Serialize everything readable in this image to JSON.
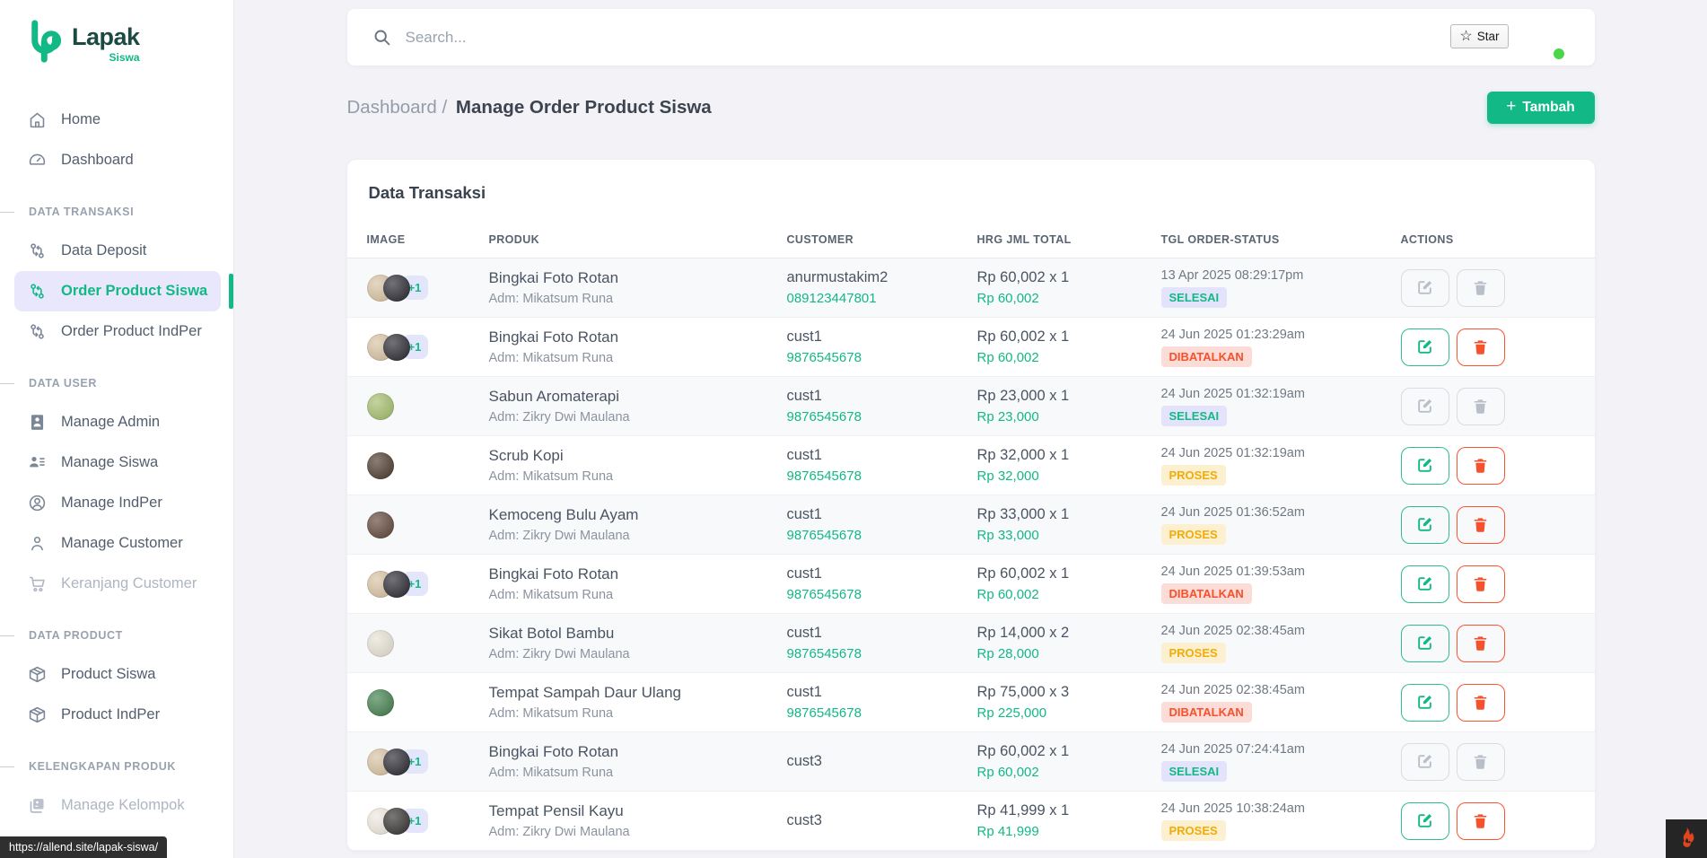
{
  "app": {
    "logo_text": "Lapak",
    "logo_sub": "Siswa",
    "url_tooltip": "https://allend.site/lapak-siswa/"
  },
  "colors": {
    "primary_green": "#12b886",
    "danger_red": "#f4512c",
    "warning_yellow": "#f0ac08",
    "active_lavender": "#e8e7fc",
    "page_background": "#f2f2f7",
    "notification_dot": "#4ad54a",
    "flame_orange": "#e0451d"
  },
  "topbar": {
    "search_placeholder": "Search...",
    "star_label": "Star",
    "star_icon": "☆"
  },
  "breadcrumb": {
    "parent": "Dashboard",
    "separator": "/",
    "current": "Manage Order Product Siswa"
  },
  "toolbar": {
    "add_plus": "+",
    "add_label": "Tambah"
  },
  "sidebar": {
    "sections": [
      {
        "label": "",
        "items": [
          {
            "label": "Home",
            "icon": "home"
          },
          {
            "label": "Dashboard",
            "icon": "dashboard"
          }
        ]
      },
      {
        "label": "DATA TRANSAKSI",
        "items": [
          {
            "label": "Data Deposit",
            "icon": "transaction"
          },
          {
            "label": "Order Product Siswa",
            "icon": "transaction",
            "active": true
          },
          {
            "label": "Order Product IndPer",
            "icon": "transaction"
          }
        ]
      },
      {
        "label": "DATA USER",
        "items": [
          {
            "label": "Manage Admin",
            "icon": "idcard"
          },
          {
            "label": "Manage Siswa",
            "icon": "users"
          },
          {
            "label": "Manage IndPer",
            "icon": "usercircle"
          },
          {
            "label": "Manage Customer",
            "icon": "user"
          },
          {
            "label": "Keranjang Customer",
            "icon": "cart",
            "muted": true
          }
        ]
      },
      {
        "label": "DATA PRODUCT",
        "items": [
          {
            "label": "Product Siswa",
            "icon": "box"
          },
          {
            "label": "Product IndPer",
            "icon": "box"
          }
        ]
      },
      {
        "label": "KELENGKAPAN PRODUK",
        "items": [
          {
            "label": "Manage Kelompok",
            "icon": "images",
            "muted": true
          }
        ]
      }
    ]
  },
  "table": {
    "title": "Data Transaksi",
    "columns": [
      "IMAGE",
      "PRODUK",
      "CUSTOMER",
      "HRG JML TOTAL",
      "TGL ORDER-STATUS",
      "ACTIONS"
    ],
    "rows": [
      {
        "product": "Bingkai Foto Rotan",
        "admin": "Adm: Mikatsum Runa",
        "customer": "anurmustakim2",
        "phone": "089123447801",
        "qty_price": "Rp 60,002 x 1",
        "total": "Rp 60,002",
        "date": "13 Apr 2025 08:29:17pm",
        "status": "SELESAI",
        "status_type": "selesai",
        "disabled": true,
        "thumbs": [
          "#d8c2a2",
          "#26262e"
        ],
        "extra": "+1"
      },
      {
        "product": "Bingkai Foto Rotan",
        "admin": "Adm: Mikatsum Runa",
        "customer": "cust1",
        "phone": "9876545678",
        "qty_price": "Rp 60,002 x 1",
        "total": "Rp 60,002",
        "date": "24 Jun 2025 01:23:29am",
        "status": "DIBATALKAN",
        "status_type": "dibatalkan",
        "disabled": false,
        "thumbs": [
          "#d8c2a2",
          "#26262e"
        ],
        "extra": "+1"
      },
      {
        "product": "Sabun Aromaterapi",
        "admin": "Adm: Zikry Dwi Maulana",
        "customer": "cust1",
        "phone": "9876545678",
        "qty_price": "Rp 23,000 x 1",
        "total": "Rp 23,000",
        "date": "24 Jun 2025 01:32:19am",
        "status": "SELESAI",
        "status_type": "selesai",
        "disabled": true,
        "thumbs": [
          "#a3bd6b"
        ],
        "extra": ""
      },
      {
        "product": "Scrub Kopi",
        "admin": "Adm: Mikatsum Runa",
        "customer": "cust1",
        "phone": "9876545678",
        "qty_price": "Rp 32,000 x 1",
        "total": "Rp 32,000",
        "date": "24 Jun 2025 01:32:19am",
        "status": "PROSES",
        "status_type": "proses",
        "disabled": false,
        "thumbs": [
          "#4b382a"
        ],
        "extra": ""
      },
      {
        "product": "Kemoceng Bulu Ayam",
        "admin": "Adm: Zikry Dwi Maulana",
        "customer": "cust1",
        "phone": "9876545678",
        "qty_price": "Rp 33,000 x 1",
        "total": "Rp 33,000",
        "date": "24 Jun 2025 01:36:52am",
        "status": "PROSES",
        "status_type": "proses",
        "disabled": false,
        "thumbs": [
          "#5f4436"
        ],
        "extra": ""
      },
      {
        "product": "Bingkai Foto Rotan",
        "admin": "Adm: Mikatsum Runa",
        "customer": "cust1",
        "phone": "9876545678",
        "qty_price": "Rp 60,002 x 1",
        "total": "Rp 60,002",
        "date": "24 Jun 2025 01:39:53am",
        "status": "DIBATALKAN",
        "status_type": "dibatalkan",
        "disabled": false,
        "thumbs": [
          "#d8c2a2",
          "#26262e"
        ],
        "extra": "+1"
      },
      {
        "product": "Sikat Botol Bambu",
        "admin": "Adm: Zikry Dwi Maulana",
        "customer": "cust1",
        "phone": "9876545678",
        "qty_price": "Rp 14,000 x 2",
        "total": "Rp 28,000",
        "date": "24 Jun 2025 02:38:45am",
        "status": "PROSES",
        "status_type": "proses",
        "disabled": false,
        "thumbs": [
          "#e8e2d4"
        ],
        "extra": ""
      },
      {
        "product": "Tempat Sampah Daur Ulang",
        "admin": "Adm: Mikatsum Runa",
        "customer": "cust1",
        "phone": "9876545678",
        "qty_price": "Rp 75,000 x 3",
        "total": "Rp 225,000",
        "date": "24 Jun 2025 02:38:45am",
        "status": "DIBATALKAN",
        "status_type": "dibatalkan",
        "disabled": false,
        "thumbs": [
          "#3f7d4a"
        ],
        "extra": ""
      },
      {
        "product": "Bingkai Foto Rotan",
        "admin": "Adm: Mikatsum Runa",
        "customer": "cust3",
        "phone": "",
        "qty_price": "Rp 60,002 x 1",
        "total": "Rp 60,002",
        "date": "24 Jun 2025 07:24:41am",
        "status": "SELESAI",
        "status_type": "selesai",
        "disabled": true,
        "thumbs": [
          "#d8c2a2",
          "#26262e"
        ],
        "extra": "+1"
      },
      {
        "product": "Tempat Pensil Kayu",
        "admin": "Adm: Zikry Dwi Maulana",
        "customer": "cust3",
        "phone": "",
        "qty_price": "Rp 41,999 x 1",
        "total": "Rp 41,999",
        "date": "24 Jun 2025 10:38:24am",
        "status": "PROSES",
        "status_type": "proses",
        "disabled": false,
        "thumbs": [
          "#efe9df",
          "#33302f"
        ],
        "extra": "+1"
      }
    ]
  }
}
